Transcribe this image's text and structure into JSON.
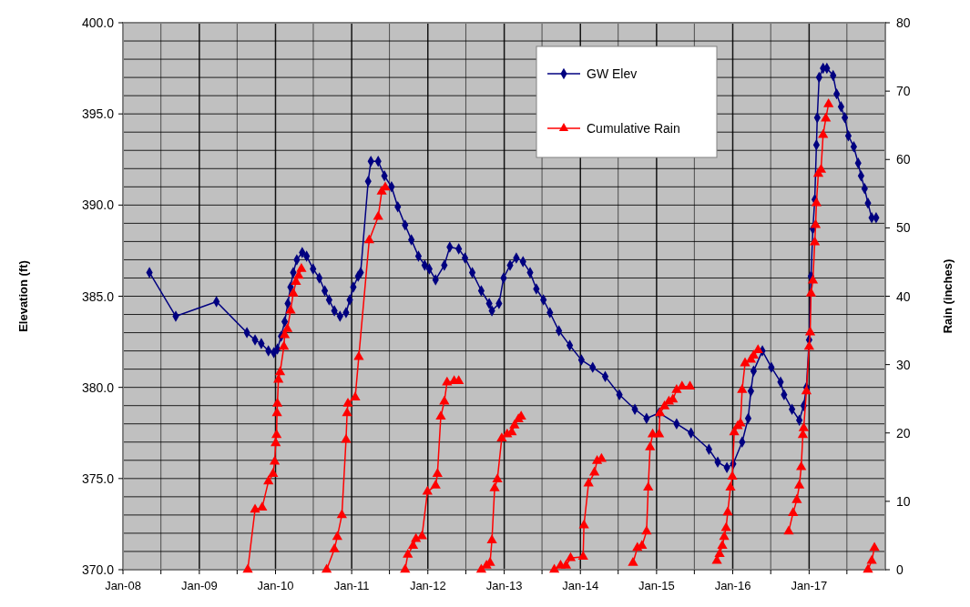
{
  "chart_data": {
    "type": "line",
    "xlabel": null,
    "ylabel": "Elevation (ft)",
    "y2label": "Rain (inches)",
    "xlim": [
      "2008-01-01",
      "2018-01-01"
    ],
    "xticks": [
      {
        "value": "2008-01-01",
        "label": "Jan-08"
      },
      {
        "value": "2008-07-01",
        "label": null
      },
      {
        "value": "2009-01-01",
        "label": "Jan-09"
      },
      {
        "value": "2009-07-01",
        "label": null
      },
      {
        "value": "2010-01-01",
        "label": "Jan-10"
      },
      {
        "value": "2010-07-01",
        "label": null
      },
      {
        "value": "2011-01-01",
        "label": "Jan-11"
      },
      {
        "value": "2011-07-01",
        "label": null
      },
      {
        "value": "2012-01-01",
        "label": "Jan-12"
      },
      {
        "value": "2012-07-01",
        "label": null
      },
      {
        "value": "2013-01-01",
        "label": "Jan-13"
      },
      {
        "value": "2013-07-01",
        "label": null
      },
      {
        "value": "2014-01-01",
        "label": "Jan-14"
      },
      {
        "value": "2014-07-01",
        "label": null
      },
      {
        "value": "2015-01-01",
        "label": "Jan-15"
      },
      {
        "value": "2015-07-01",
        "label": null
      },
      {
        "value": "2016-01-01",
        "label": "Jan-16"
      },
      {
        "value": "2016-07-01",
        "label": null
      },
      {
        "value": "2017-01-01",
        "label": "Jan-17"
      },
      {
        "value": "2017-07-01",
        "label": null
      }
    ],
    "ylim": [
      370,
      400
    ],
    "yticks": [
      {
        "value": 370,
        "label": "370.0"
      },
      {
        "value": 371,
        "label": null
      },
      {
        "value": 372,
        "label": null
      },
      {
        "value": 373,
        "label": null
      },
      {
        "value": 374,
        "label": null
      },
      {
        "value": 375,
        "label": "375.0"
      },
      {
        "value": 376,
        "label": null
      },
      {
        "value": 377,
        "label": null
      },
      {
        "value": 378,
        "label": null
      },
      {
        "value": 379,
        "label": null
      },
      {
        "value": 380,
        "label": "380.0"
      },
      {
        "value": 381,
        "label": null
      },
      {
        "value": 382,
        "label": null
      },
      {
        "value": 383,
        "label": null
      },
      {
        "value": 384,
        "label": null
      },
      {
        "value": 385,
        "label": "385.0"
      },
      {
        "value": 386,
        "label": null
      },
      {
        "value": 387,
        "label": null
      },
      {
        "value": 388,
        "label": null
      },
      {
        "value": 389,
        "label": null
      },
      {
        "value": 390,
        "label": "390.0"
      },
      {
        "value": 391,
        "label": null
      },
      {
        "value": 392,
        "label": null
      },
      {
        "value": 393,
        "label": null
      },
      {
        "value": 394,
        "label": null
      },
      {
        "value": 395,
        "label": "395.0"
      },
      {
        "value": 396,
        "label": null
      },
      {
        "value": 397,
        "label": null
      },
      {
        "value": 398,
        "label": null
      },
      {
        "value": 399,
        "label": null
      },
      {
        "value": 400,
        "label": "400.0"
      }
    ],
    "y2lim": [
      0,
      80
    ],
    "y2ticks": [
      0,
      10,
      20,
      30,
      40,
      50,
      60,
      70,
      80
    ],
    "grid": true,
    "legend": "top right",
    "line_style": "solid",
    "series": [
      {
        "name": "GW Elev",
        "color": "#000080",
        "marker": "diamond",
        "x": [
          "2008-05-07",
          "2008-09-10",
          "2009-03-24",
          "2009-08-17",
          "2009-09-25",
          "2009-10-25",
          "2009-11-28",
          "2009-12-24",
          "2010-01-10",
          "2010-01-28",
          "2010-02-14",
          "2010-03-01",
          "2010-03-14",
          "2010-03-27",
          "2010-04-13",
          "2010-05-09",
          "2010-05-30",
          "2010-06-30",
          "2010-07-30",
          "2010-08-25",
          "2010-09-15",
          "2010-10-10",
          "2010-11-06",
          "2010-12-05",
          "2010-12-23",
          "2011-01-09",
          "2011-02-01",
          "2011-02-13",
          "2011-03-21",
          "2011-04-03",
          "2011-05-08",
          "2011-06-07",
          "2011-07-11",
          "2011-08-10",
          "2011-09-14",
          "2011-10-14",
          "2011-11-17",
          "2011-12-17",
          "2012-01-08",
          "2012-02-07",
          "2012-03-20",
          "2012-04-15",
          "2012-05-28",
          "2012-06-27",
          "2012-08-01",
          "2012-09-13",
          "2012-10-21",
          "2012-11-03",
          "2012-12-07",
          "2012-12-29",
          "2013-01-29",
          "2013-02-28",
          "2013-04-01",
          "2013-05-05",
          "2013-06-04",
          "2013-07-08",
          "2013-08-08",
          "2013-09-20",
          "2013-11-11",
          "2014-01-06",
          "2014-03-01",
          "2014-04-30",
          "2014-07-07",
          "2014-09-19",
          "2014-11-14",
          "2015-01-13",
          "2015-04-07",
          "2015-06-15",
          "2015-09-09",
          "2015-10-21",
          "2015-12-04",
          "2016-01-03",
          "2016-02-15",
          "2016-03-15",
          "2016-03-28",
          "2016-04-10",
          "2016-05-22",
          "2016-07-04",
          "2016-08-17",
          "2016-09-03",
          "2016-10-11",
          "2016-11-15",
          "2016-12-06",
          "2016-12-19",
          "2017-01-01",
          "2017-01-10",
          "2017-01-19",
          "2017-01-28",
          "2017-02-05",
          "2017-02-09",
          "2017-02-18",
          "2017-03-09",
          "2017-03-27",
          "2017-04-26",
          "2017-05-13",
          "2017-06-03",
          "2017-06-21",
          "2017-07-08",
          "2017-08-03",
          "2017-08-24",
          "2017-09-07",
          "2017-09-24",
          "2017-10-10",
          "2017-10-28",
          "2017-11-18"
        ],
        "values": [
          386.3,
          383.9,
          384.7,
          383.0,
          382.6,
          382.4,
          382.0,
          381.9,
          382.1,
          382.8,
          383.6,
          384.6,
          385.5,
          386.3,
          387.0,
          387.4,
          387.2,
          386.5,
          386.0,
          385.3,
          384.8,
          384.2,
          383.9,
          384.1,
          384.8,
          385.5,
          386.1,
          386.3,
          391.3,
          392.4,
          392.4,
          391.6,
          391.0,
          389.9,
          388.9,
          388.1,
          387.2,
          386.7,
          386.5,
          385.9,
          386.7,
          387.7,
          387.6,
          387.1,
          386.3,
          385.3,
          384.6,
          384.2,
          384.6,
          386.0,
          386.7,
          387.1,
          386.9,
          386.3,
          385.4,
          384.8,
          384.1,
          383.1,
          382.3,
          381.5,
          381.1,
          380.6,
          379.6,
          378.8,
          378.3,
          378.6,
          378.0,
          377.5,
          376.6,
          375.9,
          375.6,
          375.8,
          377.0,
          378.3,
          379.8,
          380.9,
          382.0,
          381.1,
          380.3,
          379.6,
          378.8,
          378.2,
          379.0,
          380.0,
          382.6,
          386.1,
          388.7,
          390.3,
          393.3,
          394.8,
          397.0,
          397.5,
          397.5,
          397.1,
          396.1,
          395.4,
          394.8,
          393.8,
          393.2,
          392.3,
          391.6,
          390.9,
          390.1,
          389.3,
          389.3
        ]
      },
      {
        "name": "Cumulative Rain",
        "color": "#ff0000",
        "marker": "triangle",
        "axis": "y2",
        "x": [
          "2009-08-21",
          "2009-09-25",
          "2009-10-29",
          "2009-11-28",
          "2009-12-20",
          "2009-12-28",
          "2010-01-02",
          "2010-01-06",
          "2010-01-08",
          "2010-01-10",
          "2010-01-15",
          "2010-01-23",
          "2010-02-10",
          "2010-02-14",
          "2010-02-27",
          "2010-03-14",
          "2010-03-27",
          "2010-04-09",
          "2010-04-22",
          "2010-05-05",
          "2010-07-01",
          "2010-09-03",
          "2010-10-10",
          "2010-10-24",
          "2010-11-15",
          "2010-12-05",
          "2010-12-10",
          "2010-12-14",
          "2011-01-18",
          "2011-02-04",
          "2011-03-26",
          "2011-05-08",
          "2011-05-25",
          "2011-06-11",
          "2011-08-01",
          "2011-09-14",
          "2011-09-27",
          "2011-10-22",
          "2011-11-05",
          "2011-12-04",
          "2011-12-30",
          "2012-02-07",
          "2012-02-16",
          "2012-03-03",
          "2012-03-20",
          "2012-04-02",
          "2012-05-06",
          "2012-05-28",
          "2012-07-15",
          "2012-09-13",
          "2012-10-08",
          "2012-10-25",
          "2012-11-03",
          "2012-11-16",
          "2012-11-29",
          "2012-12-20",
          "2013-01-15",
          "2013-02-06",
          "2013-02-19",
          "2013-03-10",
          "2013-03-23",
          "2013-06-01",
          "2013-08-29",
          "2013-09-28",
          "2013-10-24",
          "2013-11-15",
          "2014-01-14",
          "2014-01-18",
          "2014-02-09",
          "2014-03-09",
          "2014-03-22",
          "2014-04-12",
          "2014-06-15",
          "2014-09-10",
          "2014-10-01",
          "2014-10-23",
          "2014-11-14",
          "2014-11-22",
          "2014-12-01",
          "2014-12-13",
          "2015-01-13",
          "2015-01-17",
          "2015-02-08",
          "2015-03-01",
          "2015-03-20",
          "2015-04-07",
          "2015-05-03",
          "2015-06-10",
          "2015-08-01",
          "2015-10-17",
          "2015-10-30",
          "2015-11-12",
          "2015-11-21",
          "2015-11-30",
          "2015-12-08",
          "2015-12-21",
          "2015-12-30",
          "2016-01-08",
          "2016-01-25",
          "2016-02-07",
          "2016-02-15",
          "2016-02-29",
          "2016-03-28",
          "2016-04-10",
          "2016-05-01",
          "2016-07-15",
          "2016-09-25",
          "2016-10-16",
          "2016-11-03",
          "2016-11-15",
          "2016-11-24",
          "2016-12-02",
          "2016-12-06",
          "2016-12-19",
          "2017-01-01",
          "2017-01-06",
          "2017-01-10",
          "2017-01-19",
          "2017-01-28",
          "2017-02-01",
          "2017-02-05",
          "2017-02-14",
          "2017-02-27",
          "2017-03-09",
          "2017-03-22",
          "2017-04-04",
          "2017-07-01",
          "2017-10-10",
          "2017-10-28",
          "2017-11-10"
        ],
        "values": [
          0,
          8.8,
          9.1,
          12.9,
          14.0,
          15.8,
          18.5,
          19.7,
          22.9,
          24.3,
          27.8,
          28.9,
          32.6,
          34.3,
          35.2,
          37.9,
          40.4,
          42.1,
          43.0,
          44.0,
          null,
          0,
          3.0,
          4.8,
          8.0,
          19.0,
          22.9,
          24.3,
          25.2,
          31.1,
          48.2,
          51.6,
          55.3,
          55.9,
          null,
          0,
          2.2,
          3.5,
          4.5,
          4.9,
          11.4,
          12.3,
          14.0,
          22.4,
          24.6,
          27.4,
          27.6,
          27.6,
          null,
          0,
          0.6,
          1.0,
          4.3,
          11.9,
          13.2,
          19.2,
          19.8,
          20.1,
          21.1,
          22.0,
          22.4,
          null,
          0,
          0.6,
          0.6,
          1.7,
          1.9,
          6.5,
          12.6,
          14.2,
          15.9,
          16.2,
          null,
          1.0,
          3.2,
          3.5,
          5.6,
          12.0,
          17.9,
          19.8,
          19.8,
          22.9,
          23.9,
          24.6,
          24.9,
          26.3,
          26.8,
          26.8,
          null,
          1.3,
          2.3,
          3.5,
          4.8,
          6.1,
          8.4,
          12.0,
          13.6,
          20.1,
          21.0,
          21.4,
          26.3,
          30.2,
          30.7,
          31.3,
          32.1,
          null,
          5.6,
          8.3,
          10.2,
          12.3,
          15.0,
          19.7,
          20.7,
          26.1,
          32.6,
          34.7,
          40.4,
          42.3,
          47.9,
          50.4,
          53.6,
          57.9,
          58.5,
          63.6,
          66.0,
          68.1,
          null,
          0,
          1.3,
          3.2
        ]
      }
    ]
  }
}
